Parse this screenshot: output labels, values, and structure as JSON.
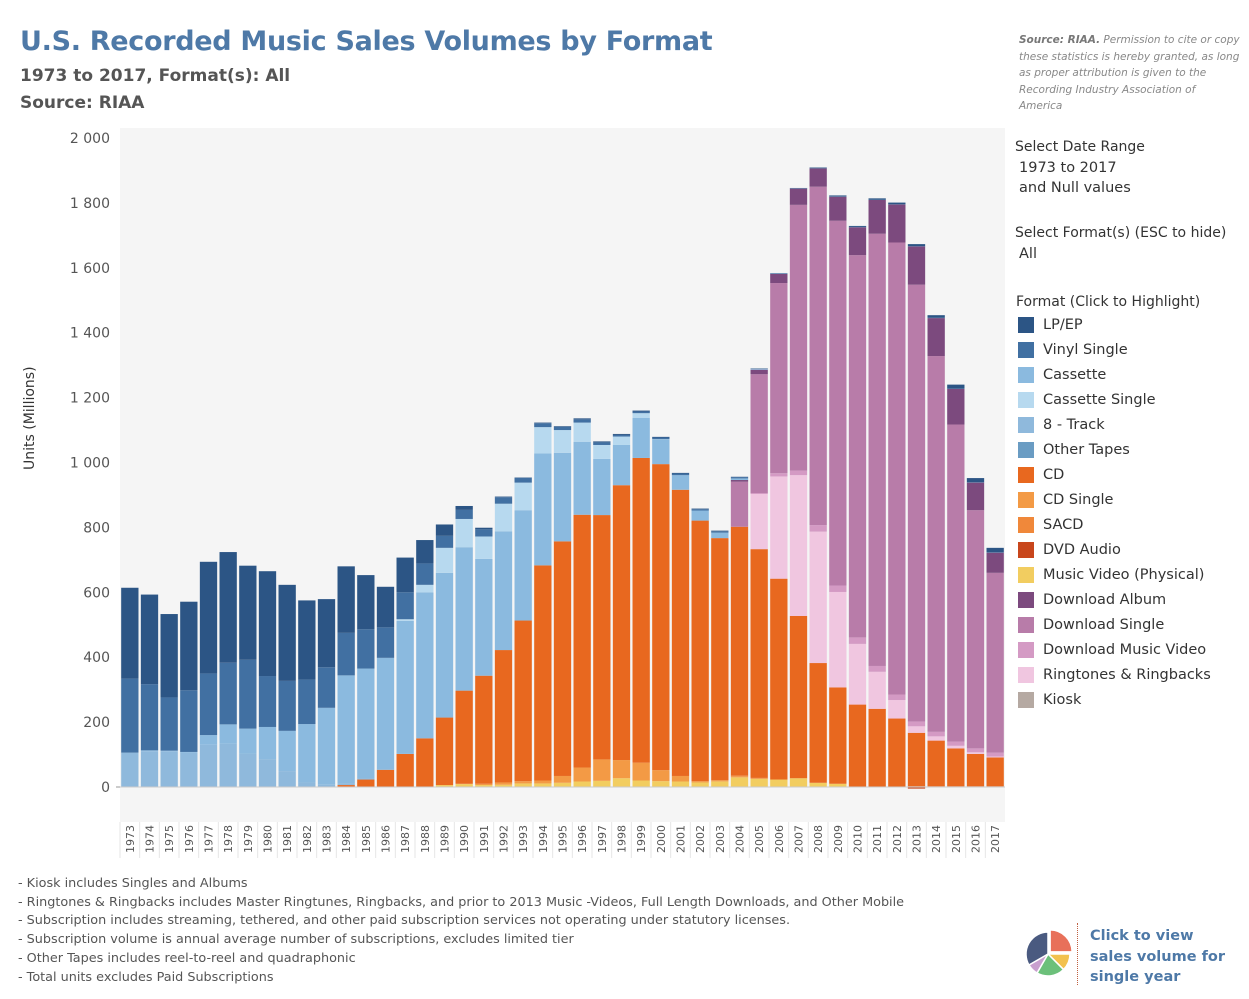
{
  "header": {
    "title": "U.S. Recorded Music Sales Volumes by Format",
    "subtitle1": "1973 to 2017, Format(s): All",
    "subtitle2": "Source: RIAA"
  },
  "source_note": {
    "bold": "Source: RIAA.",
    "text": " Permission to cite or copy these statistics is hereby granted, as long as proper attribution is given to the Recording Industry Association of America"
  },
  "filters": {
    "date_range_label": "Select Date Range",
    "date_range_value1": "1973 to 2017",
    "date_range_value2": "and Null values",
    "format_label": "Select Format(s) (ESC to hide)",
    "format_value": "All"
  },
  "legend": {
    "title": "Format (Click to Highlight)",
    "items": [
      {
        "label": "LP/EP",
        "color": "#2c5585"
      },
      {
        "label": "Vinyl Single",
        "color": "#4170a2"
      },
      {
        "label": "Cassette",
        "color": "#8bbadf"
      },
      {
        "label": "Cassette Single",
        "color": "#b7d9ef"
      },
      {
        "label": "8 - Track",
        "color": "#8fb9dc"
      },
      {
        "label": "Other Tapes",
        "color": "#6a9cc3"
      },
      {
        "label": "CD",
        "color": "#e8681f"
      },
      {
        "label": "CD Single",
        "color": "#f39a45"
      },
      {
        "label": "SACD",
        "color": "#f0883a"
      },
      {
        "label": "DVD Audio",
        "color": "#c8461c"
      },
      {
        "label": "Music Video (Physical)",
        "color": "#f2cd60"
      },
      {
        "label": "Download Album",
        "color": "#7c4a7e"
      },
      {
        "label": "Download Single",
        "color": "#b87ca9"
      },
      {
        "label": "Download Music Video",
        "color": "#d49ac4"
      },
      {
        "label": "Ringtones & Ringbacks",
        "color": "#f0c6e0"
      },
      {
        "label": "Kiosk",
        "color": "#b5a9a2"
      }
    ]
  },
  "notes": [
    "- Kiosk includes Singles and Albums",
    "- Ringtones & Ringbacks includes Master Ringtunes, Ringbacks, and prior to 2013 Music -Videos, Full Length Downloads, and Other Mobile",
    "- Subscription includes streaming, tethered, and other paid subscription services not operating under statutory licenses.",
    "- Subscription volume is annual average number of subscriptions, excludes limited tier",
    "- Other Tapes includes reel-to-reel and quadraphonic",
    "- Total units excludes Paid Subscriptions"
  ],
  "pie_button": {
    "text": "Click to view sales volume for single year",
    "colors": [
      "#e8705a",
      "#f2c14e",
      "#6cc07a",
      "#c9a0cf",
      "#4a5a80"
    ]
  },
  "chart_data": {
    "type": "bar",
    "stacked": true,
    "title": "U.S. Recorded Music Sales Volumes by Format",
    "xlabel": "",
    "ylabel": "Units (Millions)",
    "ylim": [
      -30,
      2000
    ],
    "yticks": [
      0,
      200,
      400,
      600,
      800,
      1000,
      1200,
      1400,
      1600,
      1800,
      2000
    ],
    "ytick_labels": [
      "0",
      "200",
      "400",
      "600",
      "800",
      "1 000",
      "1 200",
      "1 400",
      "1 600",
      "1 800",
      "2 000"
    ],
    "grid": false,
    "legend_position": "right",
    "categories": [
      "1973",
      "1974",
      "1975",
      "1976",
      "1977",
      "1978",
      "1979",
      "1980",
      "1981",
      "1982",
      "1983",
      "1984",
      "1985",
      "1986",
      "1987",
      "1988",
      "1989",
      "1990",
      "1991",
      "1992",
      "1993",
      "1994",
      "1995",
      "1996",
      "1997",
      "1998",
      "1999",
      "2000",
      "2001",
      "2002",
      "2003",
      "2004",
      "2005",
      "2006",
      "2007",
      "2008",
      "2009",
      "2010",
      "2011",
      "2012",
      "2013",
      "2014",
      "2015",
      "2016",
      "2017"
    ],
    "series": [
      {
        "name": "Kiosk",
        "values": [
          0,
          0,
          0,
          0,
          0,
          0,
          0,
          0,
          0,
          0,
          0,
          0,
          0,
          0,
          0,
          0,
          0,
          0,
          0,
          0,
          0,
          0,
          0,
          0,
          0,
          0,
          0,
          0,
          0,
          0,
          0,
          0,
          0,
          0,
          0,
          0,
          0,
          0,
          0,
          0,
          2,
          2,
          2,
          2,
          2
        ]
      },
      {
        "name": "Music Video (Physical)",
        "values": [
          0,
          0,
          0,
          0,
          0,
          0,
          0,
          0,
          0,
          0,
          0,
          0,
          0,
          0,
          0,
          0,
          6,
          9,
          6,
          7,
          11,
          11,
          13,
          17,
          19,
          27,
          20,
          18,
          17,
          14,
          17,
          30,
          25,
          23,
          27,
          13,
          10,
          0,
          0,
          0,
          0,
          0,
          0,
          0,
          0
        ]
      },
      {
        "name": "DVD Audio",
        "values": [
          0,
          0,
          0,
          0,
          0,
          0,
          0,
          0,
          0,
          0,
          0,
          0,
          0,
          0,
          0,
          0,
          0,
          0,
          0,
          0,
          0,
          0,
          0,
          0,
          0,
          0,
          0,
          0,
          0,
          0,
          0,
          0,
          0,
          0,
          0,
          0,
          0,
          0,
          0,
          0,
          -5,
          0,
          0,
          0,
          0
        ]
      },
      {
        "name": "SACD",
        "values": [
          0,
          0,
          0,
          0,
          0,
          0,
          0,
          0,
          0,
          0,
          0,
          0,
          0,
          0,
          0,
          0,
          0,
          0,
          0,
          0,
          0,
          0,
          0,
          0,
          0,
          0,
          0,
          0,
          0,
          0,
          1,
          2,
          1,
          0,
          0,
          0,
          0,
          0,
          0,
          0,
          0,
          0,
          0,
          0,
          0
        ]
      },
      {
        "name": "CD Single",
        "values": [
          0,
          0,
          0,
          0,
          0,
          0,
          0,
          0,
          0,
          0,
          0,
          0,
          0,
          0,
          0,
          0,
          0,
          1,
          4,
          7,
          7,
          9,
          21,
          43,
          66,
          56,
          55,
          34,
          17,
          4,
          3,
          3,
          2,
          0,
          0,
          0,
          0,
          0,
          0,
          0,
          0,
          0,
          0,
          0,
          0
        ]
      },
      {
        "name": "CD",
        "values": [
          0,
          0,
          0,
          0,
          0,
          0,
          0,
          0,
          0,
          0,
          1,
          6,
          23,
          53,
          102,
          150,
          208,
          287,
          333,
          408,
          495,
          663,
          723,
          779,
          753,
          847,
          939,
          943,
          882,
          803,
          746,
          767,
          705,
          619,
          500,
          369,
          297,
          254,
          241,
          211,
          165,
          141,
          117,
          100,
          89
        ]
      },
      {
        "name": "Ringtones & Ringbacks",
        "values": [
          0,
          0,
          0,
          0,
          0,
          0,
          0,
          0,
          0,
          0,
          0,
          0,
          0,
          0,
          0,
          0,
          0,
          0,
          0,
          0,
          0,
          0,
          0,
          0,
          0,
          0,
          0,
          0,
          0,
          0,
          0,
          0,
          170,
          315,
          434,
          405,
          294,
          187,
          114,
          57,
          20,
          13,
          8,
          5,
          3
        ]
      },
      {
        "name": "Download Music Video",
        "values": [
          0,
          0,
          0,
          0,
          0,
          0,
          0,
          0,
          0,
          0,
          0,
          0,
          0,
          0,
          0,
          0,
          0,
          0,
          0,
          0,
          0,
          0,
          0,
          0,
          0,
          0,
          0,
          0,
          0,
          0,
          0,
          0,
          3,
          10,
          14,
          20,
          20,
          20,
          18,
          17,
          15,
          14,
          13,
          12,
          12
        ]
      },
      {
        "name": "Download Single",
        "values": [
          0,
          0,
          0,
          0,
          0,
          0,
          0,
          0,
          0,
          0,
          0,
          0,
          0,
          0,
          0,
          0,
          0,
          0,
          0,
          0,
          0,
          0,
          0,
          0,
          0,
          0,
          0,
          0,
          0,
          0,
          0,
          139,
          366,
          586,
          819,
          1043,
          1124,
          1178,
          1332,
          1393,
          1346,
          1158,
          977,
          734,
          554
        ]
      },
      {
        "name": "Download Album",
        "values": [
          0,
          0,
          0,
          0,
          0,
          0,
          0,
          0,
          0,
          0,
          0,
          0,
          0,
          0,
          0,
          0,
          0,
          0,
          0,
          0,
          0,
          0,
          0,
          0,
          0,
          0,
          0,
          0,
          0,
          0,
          0,
          5,
          14,
          28,
          50,
          56,
          74,
          86,
          104,
          117,
          118,
          117,
          110,
          85,
          62
        ]
      },
      {
        "name": "Other Tapes",
        "values": [
          0,
          0,
          0,
          0,
          0,
          0,
          0,
          0,
          0,
          0,
          0,
          0,
          0,
          0,
          0,
          0,
          0,
          0,
          0,
          0,
          0,
          0,
          0,
          0,
          0,
          0,
          0,
          0,
          0,
          0,
          0,
          0,
          0,
          0,
          0,
          0,
          0,
          0,
          0,
          0,
          0,
          0,
          0,
          0,
          0
        ]
      },
      {
        "name": "8 - Track",
        "values": [
          106,
          110,
          110,
          106,
          130,
          133,
          103,
          86,
          49,
          14,
          6,
          6,
          3,
          0,
          0,
          0,
          0,
          0,
          0,
          0,
          0,
          0,
          0,
          0,
          0,
          0,
          0,
          0,
          0,
          0,
          0,
          0,
          0,
          0,
          0,
          0,
          0,
          0,
          0,
          0,
          0,
          0,
          0,
          0,
          0
        ]
      },
      {
        "name": "Cassette",
        "values": [
          0,
          3,
          2,
          2,
          30,
          60,
          77,
          99,
          124,
          180,
          237,
          332,
          339,
          345,
          410,
          450,
          446,
          442,
          360,
          366,
          340,
          345,
          273,
          225,
          173,
          124,
          124,
          76,
          45,
          31,
          17,
          5,
          2,
          1,
          0,
          0,
          0,
          0,
          0,
          0,
          0,
          0,
          0,
          0,
          0
        ]
      },
      {
        "name": "Cassette Single",
        "values": [
          0,
          0,
          0,
          0,
          0,
          0,
          0,
          0,
          0,
          0,
          0,
          0,
          0,
          0,
          5,
          23,
          77,
          87,
          69,
          85,
          85,
          81,
          70,
          59,
          43,
          26,
          14,
          1,
          0,
          0,
          0,
          0,
          0,
          0,
          0,
          0,
          0,
          0,
          0,
          0,
          0,
          0,
          0,
          0,
          0
        ]
      },
      {
        "name": "Vinyl Single",
        "values": [
          228,
          204,
          164,
          190,
          190,
          190,
          212,
          157,
          154,
          137,
          125,
          131,
          121,
          94,
          83,
          66,
          37,
          28,
          22,
          20,
          15,
          12,
          10,
          10,
          8,
          5,
          5,
          5,
          5,
          4,
          4,
          4,
          1,
          1,
          1,
          1,
          1,
          1,
          1,
          1,
          1,
          1,
          1,
          1,
          1
        ]
      },
      {
        "name": "LP/EP",
        "values": [
          280,
          276,
          257,
          273,
          344,
          341,
          290,
          323,
          296,
          244,
          210,
          205,
          167,
          125,
          107,
          72,
          35,
          12,
          5,
          2,
          1,
          2,
          2,
          3,
          3,
          3,
          3,
          2,
          2,
          2,
          2,
          1,
          1,
          1,
          1,
          2,
          3,
          3,
          4,
          5,
          6,
          8,
          12,
          13,
          14
        ]
      }
    ]
  }
}
